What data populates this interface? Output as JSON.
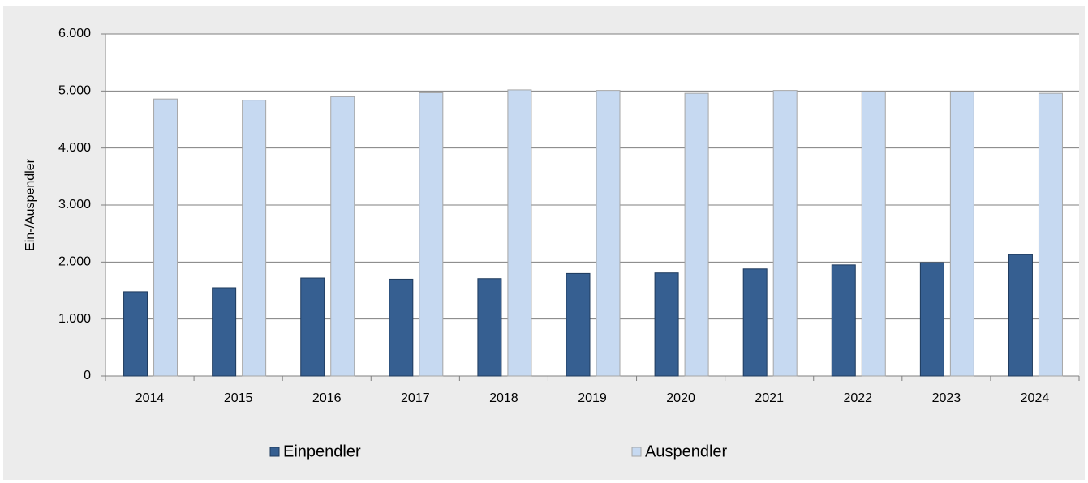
{
  "chart_data": {
    "type": "bar",
    "y_axis_label": "Ein-/Auspendler",
    "categories": [
      "2014",
      "2015",
      "2016",
      "2017",
      "2018",
      "2019",
      "2020",
      "2021",
      "2022",
      "2023",
      "2024"
    ],
    "series": [
      {
        "name": "Einpendler",
        "color": "#365f91",
        "values": [
          1480,
          1550,
          1720,
          1700,
          1710,
          1800,
          1810,
          1880,
          1950,
          1990,
          2130
        ]
      },
      {
        "name": "Auspendler",
        "color": "#c6d9f1",
        "values": [
          4860,
          4840,
          4900,
          4970,
          5020,
          5010,
          4960,
          5010,
          4990,
          4990,
          4960
        ]
      }
    ],
    "ylim": [
      0,
      6000
    ],
    "yticks": [
      0,
      {
        "value": 1000,
        "label": "1.000"
      },
      {
        "value": 2000,
        "label": "2.000"
      },
      {
        "value": 3000,
        "label": "3.000"
      },
      {
        "value": 4000,
        "label": "4.000"
      },
      {
        "value": 5000,
        "label": "5.000"
      },
      {
        "value": 6000,
        "label": "6.000"
      }
    ],
    "grid": true
  }
}
